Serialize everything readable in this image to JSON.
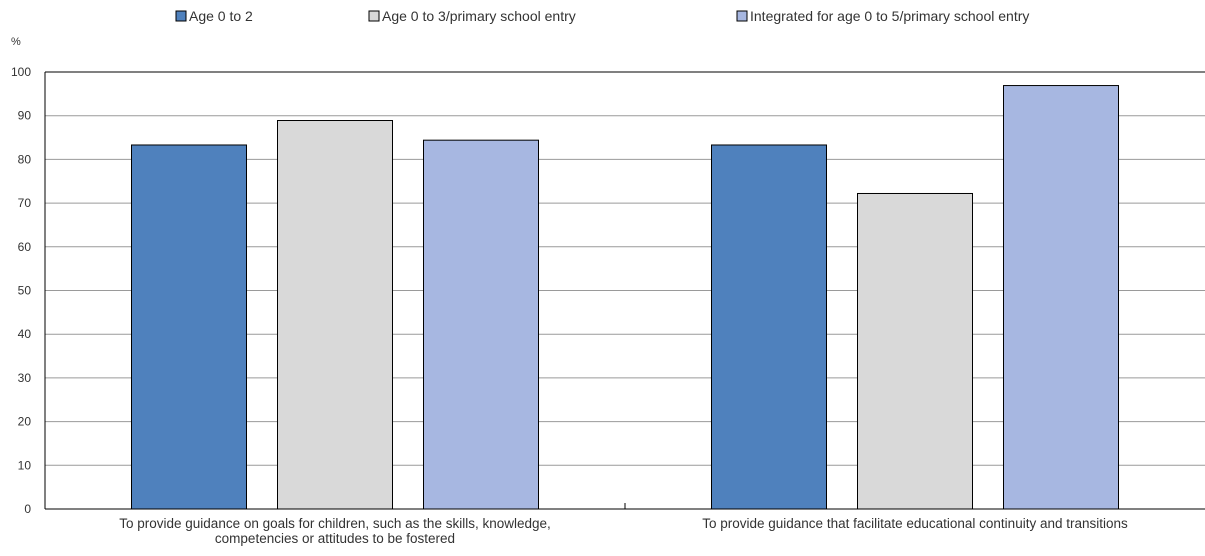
{
  "chart_data": {
    "type": "bar",
    "ylabel": "%",
    "ylim": [
      0,
      100
    ],
    "yticks": [
      0,
      10,
      20,
      30,
      40,
      50,
      60,
      70,
      80,
      90,
      100
    ],
    "grid": true,
    "legend_position": "top",
    "categories": [
      [
        "To provide guidance on goals for children, such as the skills, knowledge,",
        "competencies or attitudes to be fostered"
      ],
      [
        "To provide guidance that facilitate educational continuity and transitions"
      ]
    ],
    "series": [
      {
        "name": "Age 0 to 2",
        "color": "#4f81bd",
        "values": [
          83.3,
          83.3
        ]
      },
      {
        "name": "Age 0 to 3/primary school entry",
        "color": "#d9d9d9",
        "values": [
          88.9,
          72.2
        ]
      },
      {
        "name": "Integrated for age 0 to 5/primary school entry",
        "color": "#a7b7e1",
        "values": [
          84.4,
          96.9
        ]
      }
    ]
  }
}
